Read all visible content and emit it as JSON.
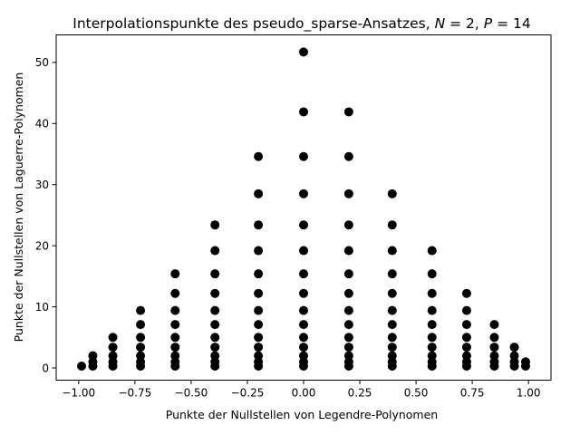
{
  "chart_data": {
    "type": "scatter",
    "title": "Interpolationspunkte des pseudo_sparse-Ansatzes, N = 2, P = 14",
    "title_parts": {
      "prefix": "Interpolationspunkte des pseudo_sparse-Ansatzes, ",
      "n_symbol": "N",
      "n_value": " = 2, ",
      "p_symbol": "P",
      "p_value": " = 14"
    },
    "xlabel": "Punkte der Nullstellen von Legendre-Polynomen",
    "ylabel": "Punkte der Nullstellen von Laguerre-Polynomen",
    "xlim": [
      -1.1,
      1.1
    ],
    "ylim": [
      -2.0,
      54.5
    ],
    "xticks": [
      -1.0,
      -0.75,
      -0.5,
      -0.25,
      0.0,
      0.25,
      0.5,
      0.75,
      1.0
    ],
    "xtick_labels": [
      "−1.00",
      "−0.75",
      "−0.50",
      "−0.25",
      "0.00",
      "0.25",
      "0.50",
      "0.75",
      "1.00"
    ],
    "yticks": [
      0,
      10,
      20,
      30,
      40,
      50
    ],
    "ytick_labels": [
      "0",
      "10",
      "20",
      "30",
      "40",
      "50"
    ],
    "grid": false,
    "marker_color": "#000000",
    "columns": [
      {
        "x": -0.987,
        "y": [
          0.3
        ]
      },
      {
        "x": -0.937,
        "y": [
          0.3,
          1.0,
          2.0
        ]
      },
      {
        "x": -0.848,
        "y": [
          0.3,
          1.0,
          2.0,
          3.4,
          5.0
        ]
      },
      {
        "x": -0.725,
        "y": [
          0.3,
          1.0,
          2.0,
          3.4,
          5.0,
          7.1,
          9.4
        ]
      },
      {
        "x": -0.571,
        "y": [
          0.3,
          1.0,
          2.0,
          3.4,
          5.0,
          7.1,
          9.4,
          12.2,
          15.4
        ]
      },
      {
        "x": -0.394,
        "y": [
          0.3,
          1.0,
          2.0,
          3.4,
          5.0,
          7.1,
          9.4,
          12.2,
          15.4,
          19.2,
          23.4
        ]
      },
      {
        "x": -0.201,
        "y": [
          0.3,
          1.0,
          2.0,
          3.4,
          5.0,
          7.1,
          9.4,
          12.2,
          15.4,
          19.2,
          23.4,
          28.5,
          34.6
        ]
      },
      {
        "x": 0.0,
        "y": [
          0.3,
          1.0,
          2.0,
          3.4,
          5.0,
          7.1,
          9.4,
          12.2,
          15.4,
          19.2,
          23.4,
          28.5,
          34.6,
          41.9,
          51.7
        ]
      },
      {
        "x": 0.201,
        "y": [
          0.3,
          1.0,
          2.0,
          3.4,
          5.0,
          7.1,
          9.4,
          12.2,
          15.4,
          19.2,
          23.4,
          28.5,
          34.6,
          41.9
        ]
      },
      {
        "x": 0.394,
        "y": [
          0.3,
          1.0,
          2.0,
          3.4,
          5.0,
          7.1,
          9.4,
          12.2,
          15.4,
          19.2,
          23.4,
          28.5
        ]
      },
      {
        "x": 0.571,
        "y": [
          0.3,
          1.0,
          2.0,
          3.4,
          5.0,
          7.1,
          9.4,
          12.2,
          15.4,
          19.2
        ]
      },
      {
        "x": 0.725,
        "y": [
          0.3,
          1.0,
          2.0,
          3.4,
          5.0,
          7.1,
          9.4,
          12.2
        ]
      },
      {
        "x": 0.848,
        "y": [
          0.3,
          1.0,
          2.0,
          3.4,
          5.0,
          7.1
        ]
      },
      {
        "x": 0.937,
        "y": [
          0.3,
          1.0,
          2.0,
          3.4
        ]
      },
      {
        "x": 0.987,
        "y": [
          0.3,
          1.0
        ]
      }
    ]
  }
}
